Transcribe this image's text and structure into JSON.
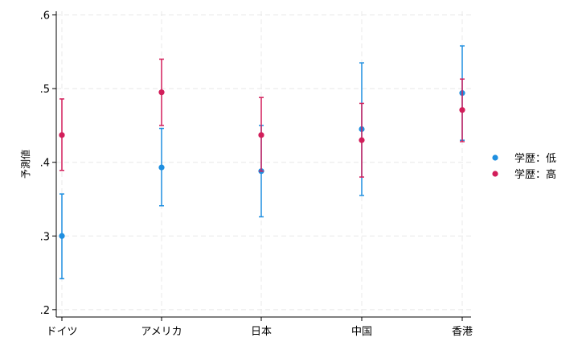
{
  "chart_data": {
    "type": "scatter",
    "ylabel": "予測値",
    "xlabel": "",
    "categories": [
      "ドイツ",
      "アメリカ",
      "日本",
      "中国",
      "香港"
    ],
    "yticks": [
      ".2",
      ".3",
      ".4",
      ".5",
      ".6"
    ],
    "ytick_values": [
      0.2,
      0.3,
      0.4,
      0.5,
      0.6
    ],
    "ylim": [
      0.19,
      0.605
    ],
    "grid": true,
    "legend_position": "right",
    "series": [
      {
        "name": "学歴：低",
        "color": "#1f8fe0",
        "values": [
          0.3,
          0.393,
          0.388,
          0.445,
          0.494
        ],
        "lower": [
          0.242,
          0.341,
          0.326,
          0.355,
          0.43
        ],
        "upper": [
          0.357,
          0.446,
          0.45,
          0.535,
          0.558
        ]
      },
      {
        "name": "学歴：高",
        "color": "#d21e5a",
        "values": [
          0.437,
          0.495,
          0.437,
          0.43,
          0.471
        ],
        "lower": [
          0.389,
          0.45,
          0.388,
          0.38,
          0.428
        ],
        "upper": [
          0.486,
          0.54,
          0.488,
          0.48,
          0.513
        ]
      }
    ]
  }
}
